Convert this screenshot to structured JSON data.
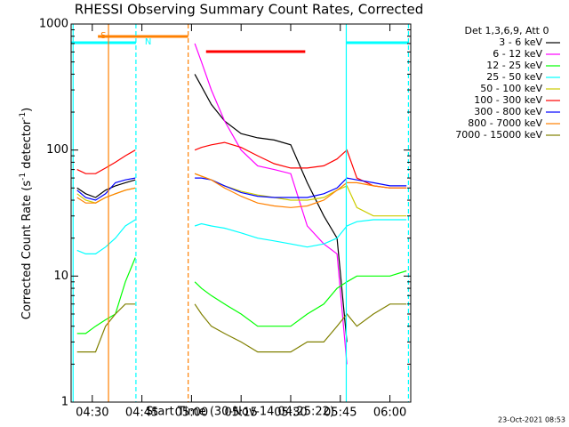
{
  "chart_data": {
    "type": "line",
    "title": "RHESSI Observing Summary Count Rates, Corrected",
    "xlabel": "Start Time (30-Nov-14 04:25:22)",
    "ylabel_parts": [
      "Corrected Count Rate (s",
      "-1",
      " detector",
      "-1",
      ")"
    ],
    "legend_title": "Det 1,3,6,9, Att 0",
    "footer": "23-Oct-2021 08:53",
    "log_y": true,
    "ylim": [
      1,
      1000
    ],
    "yticks": [
      1,
      10,
      100,
      1000
    ],
    "xlim": [
      23.6,
      126.3
    ],
    "xticks": [
      {
        "value": 30,
        "label": "04:30"
      },
      {
        "value": 45,
        "label": "04:45"
      },
      {
        "value": 60,
        "label": "05:00"
      },
      {
        "value": 75,
        "label": "05:15"
      },
      {
        "value": 90,
        "label": "05:30"
      },
      {
        "value": 105,
        "label": "05:45"
      },
      {
        "value": 120,
        "label": "06:00"
      }
    ],
    "x": [
      25.4,
      28,
      31,
      34,
      37,
      40,
      43,
      52,
      61,
      63,
      66,
      70,
      75,
      80,
      85,
      90,
      95,
      100,
      104,
      107,
      110,
      115,
      120,
      125
    ],
    "series": [
      {
        "name": "3 - 6 keV",
        "color": "#000000",
        "values": [
          50,
          45,
          42,
          48,
          52,
          55,
          58,
          null,
          400,
          320,
          230,
          170,
          135,
          125,
          120,
          110,
          55,
          30,
          20,
          3,
          null,
          null,
          null,
          null
        ]
      },
      {
        "name": "6 - 12 keV",
        "color": "#ff00ff",
        "values": [
          null,
          null,
          null,
          null,
          null,
          null,
          null,
          null,
          700,
          500,
          300,
          170,
          100,
          75,
          70,
          65,
          25,
          18,
          15,
          2,
          null,
          null,
          null,
          null
        ]
      },
      {
        "name": "12 - 25 keV",
        "color": "#00ff00",
        "values": [
          3.5,
          3.5,
          4,
          4.5,
          5,
          9,
          14,
          null,
          9,
          8,
          7,
          6,
          5,
          4,
          4,
          4,
          5,
          6,
          8,
          9,
          10,
          10,
          10,
          11
        ]
      },
      {
        "name": "25 - 50 keV",
        "color": "#00ffff",
        "values": [
          16,
          15,
          15,
          17,
          20,
          25,
          28,
          null,
          25,
          26,
          25,
          24,
          22,
          20,
          19,
          18,
          17,
          18,
          20,
          25,
          27,
          28,
          28,
          28
        ]
      },
      {
        "name": "50 - 100 keV",
        "color": "#cccc00",
        "values": [
          45,
          40,
          38,
          42,
          45,
          48,
          50,
          null,
          65,
          62,
          58,
          52,
          47,
          44,
          42,
          40,
          40,
          42,
          48,
          52,
          35,
          30,
          30,
          30
        ]
      },
      {
        "name": "100 - 300 keV",
        "color": "#ff0000",
        "values": [
          70,
          65,
          65,
          72,
          80,
          90,
          100,
          null,
          100,
          105,
          110,
          115,
          105,
          90,
          78,
          72,
          72,
          75,
          85,
          100,
          60,
          52,
          50,
          50
        ]
      },
      {
        "name": "300 - 800 keV",
        "color": "#0000ff",
        "values": [
          48,
          42,
          40,
          45,
          55,
          58,
          60,
          null,
          60,
          60,
          58,
          52,
          46,
          43,
          42,
          42,
          42,
          45,
          50,
          60,
          58,
          55,
          52,
          52
        ]
      },
      {
        "name": "800 - 7000 keV",
        "color": "#ff8000",
        "values": [
          42,
          38,
          38,
          42,
          45,
          48,
          50,
          null,
          65,
          62,
          58,
          50,
          43,
          38,
          36,
          35,
          36,
          40,
          48,
          55,
          55,
          52,
          50,
          50
        ]
      },
      {
        "name": "7000 - 15000 keV",
        "color": "#808000",
        "values": [
          2.5,
          2.5,
          2.5,
          4,
          5,
          6,
          6,
          null,
          6,
          5,
          4,
          3.5,
          3,
          2.5,
          2.5,
          2.5,
          3,
          3,
          4,
          5,
          4,
          5,
          6,
          6
        ]
      }
    ],
    "flag_bars": [
      {
        "label": "S",
        "color": "#ff8000",
        "x": [
          31.7,
          59.0
        ]
      },
      {
        "label": "N",
        "color": "#00ffff",
        "x": [
          23.6,
          43.2
        ]
      },
      {
        "color": "#00ffff",
        "x": [
          106.8,
          125.6
        ]
      },
      {
        "color": "#ff0000",
        "x": [
          64.4,
          94.4
        ]
      }
    ],
    "flag_lines": [
      {
        "color": "#00ffff",
        "x": 24.2,
        "dashed": false
      },
      {
        "color": "#ff8000",
        "x": 34.9,
        "dashed": false
      },
      {
        "color": "#00ffff",
        "x": 43.2,
        "dashed": true
      },
      {
        "color": "#ff8000",
        "x": 59.0,
        "dashed": true
      },
      {
        "color": "#00ffff",
        "x": 106.8,
        "dashed": false
      },
      {
        "color": "#00ffff",
        "x": 125.6,
        "dashed": true
      }
    ]
  }
}
